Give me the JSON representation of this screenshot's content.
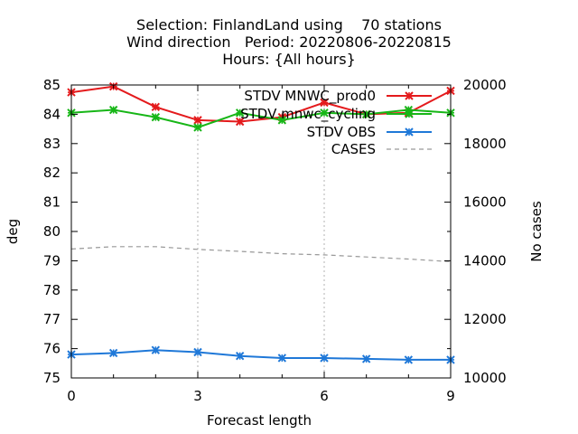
{
  "chart_data": {
    "type": "line",
    "title_lines": [
      "Selection: FinlandLand using    70 stations",
      "Wind direction   Period: 20220806-20220815",
      "Hours: {All hours}"
    ],
    "xlabel": "Forecast length",
    "ylabel": "deg",
    "y2label": "No cases",
    "xlim": [
      0,
      9
    ],
    "ylim": [
      75,
      85
    ],
    "y2lim": [
      10000,
      20000
    ],
    "x_ticks": [
      "0",
      "3",
      "6",
      "9"
    ],
    "y_ticks": [
      "75",
      "76",
      "77",
      "78",
      "79",
      "80",
      "81",
      "82",
      "83",
      "84",
      "85"
    ],
    "y2_ticks": [
      "10000",
      "12000",
      "14000",
      "16000",
      "18000",
      "20000"
    ],
    "grid": "vertical at x ticks",
    "legend_position": "top-right",
    "x": [
      0,
      1,
      2,
      3,
      4,
      5,
      6,
      7,
      8,
      9
    ],
    "series": [
      {
        "name": "STDV MNWC_prod0",
        "color": "#e41a1c",
        "axis": "y1",
        "marker": "x",
        "values": [
          84.75,
          84.95,
          84.25,
          83.8,
          83.75,
          83.9,
          84.4,
          84.0,
          84.05,
          84.8
        ]
      },
      {
        "name": "STDV mnwc_cycling",
        "color": "#17b617",
        "axis": "y1",
        "marker": "x",
        "values": [
          84.05,
          84.15,
          83.9,
          83.55,
          84.05,
          83.8,
          84.05,
          84.0,
          84.15,
          84.05
        ]
      },
      {
        "name": "STDV OBS",
        "color": "#1f78d8",
        "axis": "y1",
        "marker": "x",
        "values": [
          75.8,
          75.85,
          75.95,
          75.88,
          75.75,
          75.68,
          75.68,
          75.65,
          75.62,
          75.62
        ]
      },
      {
        "name": "CASES",
        "color": "#999999",
        "axis": "y2",
        "marker": "none",
        "dashed": true,
        "values": [
          14400,
          14480,
          14480,
          14390,
          14320,
          14240,
          14200,
          14130,
          14060,
          13970
        ]
      }
    ]
  }
}
